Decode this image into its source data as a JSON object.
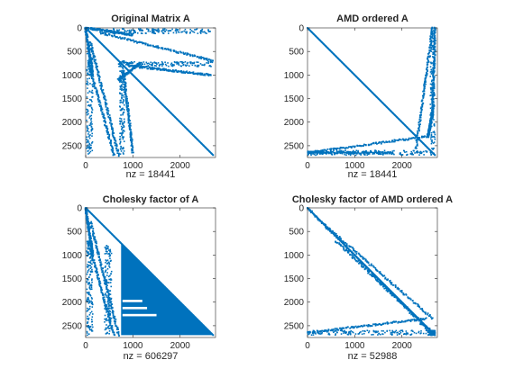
{
  "chart_data": [
    {
      "type": "spy",
      "title": "Original Matrix A",
      "xlabel": "nz = 18441",
      "xlim": [
        0,
        2750
      ],
      "ylim": [
        0,
        2750
      ],
      "xticks": [
        "0",
        "1000",
        "2000"
      ],
      "yticks": [
        "0",
        "500",
        "1000",
        "1500",
        "2000",
        "2500"
      ],
      "xtick_values": [
        0,
        1000,
        2000
      ],
      "ytick_values": [
        0,
        500,
        1000,
        1500,
        2000,
        2500
      ],
      "y_direction": "reversed",
      "nonzeros": 18441,
      "structure": {
        "main_diagonal": true,
        "bands": [
          {
            "from": [
              0,
              0
            ],
            "to": [
              2700,
              2700
            ]
          },
          {
            "from": [
              0,
              0
            ],
            "to": [
              1000,
              150
            ]
          },
          {
            "from": [
              300,
              100
            ],
            "to": [
              2700,
              700
            ]
          },
          {
            "from": [
              900,
              800
            ],
            "to": [
              2650,
              1000
            ]
          },
          {
            "from": [
              700,
              1100
            ],
            "to": [
              1150,
              750
            ]
          },
          {
            "from": [
              0,
              0
            ],
            "to": [
              150,
              1000
            ]
          },
          {
            "from": [
              100,
              300
            ],
            "to": [
              700,
              2700
            ]
          },
          {
            "from": [
              800,
              900
            ],
            "to": [
              1000,
              2650
            ]
          },
          {
            "from": [
              50,
              700
            ],
            "to": [
              600,
              2700
            ]
          }
        ],
        "rects": [
          {
            "x": [
              400,
              2700
            ],
            "y": [
              20,
              120
            ]
          },
          {
            "x": [
              700,
              2700
            ],
            "y": [
              720,
              820
            ]
          },
          {
            "x": [
              20,
              150
            ],
            "y": [
              400,
              2700
            ]
          },
          {
            "x": [
              720,
              820
            ],
            "y": [
              700,
              2700
            ]
          }
        ]
      }
    },
    {
      "type": "spy",
      "title": "AMD ordered A",
      "xlabel": "nz = 18441",
      "xlim": [
        0,
        2750
      ],
      "ylim": [
        0,
        2750
      ],
      "xticks": [
        "0",
        "1000",
        "2000"
      ],
      "yticks": [
        "0",
        "500",
        "1000",
        "1500",
        "2000",
        "2500"
      ],
      "xtick_values": [
        0,
        1000,
        2000
      ],
      "ytick_values": [
        0,
        500,
        1000,
        1500,
        2000,
        2500
      ],
      "y_direction": "reversed",
      "nonzeros": 18441,
      "structure": {
        "main_diagonal": true,
        "bands": [
          {
            "from": [
              0,
              0
            ],
            "to": [
              2700,
              2700
            ]
          },
          {
            "from": [
              0,
              2650
            ],
            "to": [
              2550,
              2300
            ]
          },
          {
            "from": [
              2550,
              2300
            ],
            "to": [
              2650,
              1800
            ]
          },
          {
            "from": [
              2650,
              1800
            ],
            "to": [
              2700,
              0
            ]
          },
          {
            "from": [
              2650,
              0
            ],
            "to": [
              2300,
              2550
            ]
          },
          {
            "from": [
              1800,
              2650
            ],
            "to": [
              0,
              2650
            ]
          }
        ],
        "rects": [
          {
            "x": [
              0,
              2700
            ],
            "y": [
              2600,
              2700
            ]
          },
          {
            "x": [
              2600,
              2700
            ],
            "y": [
              0,
              2700
            ]
          }
        ]
      }
    },
    {
      "type": "spy",
      "title": "Cholesky factor of A",
      "xlabel": "nz = 606297",
      "xlim": [
        0,
        2750
      ],
      "ylim": [
        0,
        2750
      ],
      "xticks": [
        "0",
        "1000",
        "2000"
      ],
      "yticks": [
        "0",
        "500",
        "1000",
        "1500",
        "2000",
        "2500"
      ],
      "xtick_values": [
        0,
        1000,
        2000
      ],
      "ytick_values": [
        0,
        500,
        1000,
        1500,
        2000,
        2500
      ],
      "y_direction": "reversed",
      "nonzeros": 606297,
      "structure": {
        "main_diagonal": true,
        "filled_lower_triangle": {
          "from_col": 750
        },
        "bands": [
          {
            "from": [
              0,
              0
            ],
            "to": [
              2700,
              2700
            ]
          },
          {
            "from": [
              0,
              0
            ],
            "to": [
              150,
              1000
            ]
          },
          {
            "from": [
              100,
              300
            ],
            "to": [
              700,
              2700
            ]
          },
          {
            "from": [
              50,
              700
            ],
            "to": [
              600,
              2700
            ]
          }
        ],
        "rects": [
          {
            "x": [
              20,
              150
            ],
            "y": [
              700,
              2700
            ]
          },
          {
            "x": [
              400,
              550
            ],
            "y": [
              800,
              2700
            ]
          }
        ],
        "gaps": [
          {
            "x": [
              780,
              1200
            ],
            "y": [
              1950,
              2000
            ]
          },
          {
            "x": [
              780,
              1300
            ],
            "y": [
              2100,
              2150
            ]
          },
          {
            "x": [
              780,
              1500
            ],
            "y": [
              2250,
              2300
            ]
          }
        ]
      }
    },
    {
      "type": "spy",
      "title": "Cholesky factor of AMD ordered A",
      "xlabel": "nz = 52988",
      "xlim": [
        0,
        2750
      ],
      "ylim": [
        0,
        2750
      ],
      "xticks": [
        "0",
        "1000",
        "2000"
      ],
      "yticks": [
        "0",
        "500",
        "1000",
        "1500",
        "2000",
        "2500"
      ],
      "xtick_values": [
        0,
        1000,
        2000
      ],
      "ytick_values": [
        0,
        500,
        1000,
        1500,
        2000,
        2500
      ],
      "y_direction": "reversed",
      "nonzeros": 52988,
      "structure": {
        "main_diagonal": true,
        "bands": [
          {
            "from": [
              0,
              0
            ],
            "to": [
              2700,
              2700
            ]
          },
          {
            "from": [
              0,
              0
            ],
            "to": [
              2650,
              2700
            ]
          },
          {
            "from": [
              300,
              300
            ],
            "to": [
              2650,
              2350
            ]
          },
          {
            "from": [
              0,
              2650
            ],
            "to": [
              2500,
              2350
            ]
          },
          {
            "from": [
              600,
              700
            ],
            "to": [
              2600,
              2600
            ]
          }
        ],
        "rects": [
          {
            "x": [
              0,
              2700
            ],
            "y": [
              2600,
              2700
            ]
          },
          {
            "x": [
              2600,
              2700
            ],
            "y": [
              2600,
              2700
            ]
          }
        ]
      }
    }
  ],
  "colors": {
    "marker": "#0072bd",
    "axes": "#262626",
    "background": "#ffffff"
  }
}
